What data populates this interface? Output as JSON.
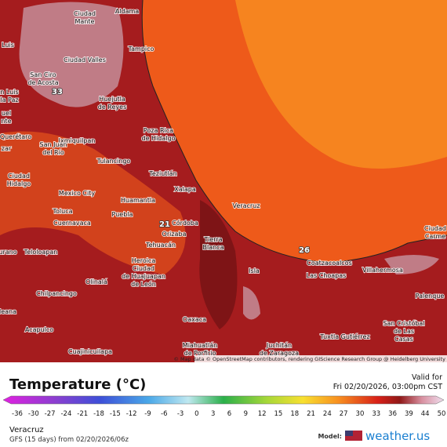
{
  "map": {
    "places": [
      {
        "lines": [
          "Aldama"
        ]
      },
      {
        "lines": [
          "Ciudad",
          "Mante"
        ]
      },
      {
        "lines": [
          "Luis"
        ]
      },
      {
        "lines": [
          "Ciudad Valles"
        ]
      },
      {
        "lines": [
          "Tampico"
        ]
      },
      {
        "lines": [
          "San Ciro",
          "de Acosta"
        ]
      },
      {
        "lines": [
          "Huejutla",
          "de Reyes"
        ]
      },
      {
        "lines": [
          "n Luis",
          "la Paz"
        ]
      },
      {
        "lines": [
          "uel",
          "nte"
        ]
      },
      {
        "lines": [
          "Poza Rica",
          "de Hidalgo"
        ]
      },
      {
        "lines": [
          "Querétaro"
        ]
      },
      {
        "lines": [
          "Ixmiquilpan"
        ]
      },
      {
        "lines": [
          "San Juan",
          "del Río"
        ]
      },
      {
        "lines": [
          "zar"
        ]
      },
      {
        "lines": [
          "Tulancingo"
        ]
      },
      {
        "lines": [
          "Ciudad",
          "Hidalgo"
        ]
      },
      {
        "lines": [
          "Teziutlán"
        ]
      },
      {
        "lines": [
          "Xalapa"
        ]
      },
      {
        "lines": [
          "Mexico City"
        ]
      },
      {
        "lines": [
          "Huamantla"
        ]
      },
      {
        "lines": [
          "Veracruz"
        ]
      },
      {
        "lines": [
          "Toluca"
        ]
      },
      {
        "lines": [
          "Cuernavaca"
        ]
      },
      {
        "lines": [
          "Puebla"
        ]
      },
      {
        "lines": [
          "Córdoba"
        ]
      },
      {
        "lines": [
          "Orizaba"
        ]
      },
      {
        "lines": [
          "Tierra",
          "Blanca"
        ]
      },
      {
        "lines": [
          "Tehuacán"
        ]
      },
      {
        "lines": [
          "Teloloapan"
        ]
      },
      {
        "lines": [
          "urano"
        ]
      },
      {
        "lines": [
          "Ciudad",
          "Carme"
        ]
      },
      {
        "lines": [
          "Coatzacoalcos"
        ]
      },
      {
        "lines": [
          "Heroica",
          "Ciudad",
          "de Huajuapan",
          "de León"
        ]
      },
      {
        "lines": [
          "Isla"
        ]
      },
      {
        "lines": [
          "Las Choapas"
        ]
      },
      {
        "lines": [
          "Villahermosa"
        ]
      },
      {
        "lines": [
          "Olinalá"
        ]
      },
      {
        "lines": [
          "Chilpancingo"
        ]
      },
      {
        "lines": [
          "Palenque"
        ]
      },
      {
        "lines": [
          "Acapulco"
        ]
      },
      {
        "lines": [
          "Oaxaca"
        ]
      },
      {
        "lines": [
          "San Cristóbal",
          "de Las",
          "Casas"
        ]
      },
      {
        "lines": [
          "Tuxtla Gutiérrez"
        ]
      },
      {
        "lines": [
          "Miahuatlán",
          "de Porfirio"
        ]
      },
      {
        "lines": [
          "Juchitán",
          "de Zaragoza"
        ]
      },
      {
        "lines": [
          "Cuajinicuilapa"
        ]
      },
      {
        "lines": [
          "leana"
        ]
      }
    ],
    "contour_labels": [
      33,
      21,
      26
    ],
    "attribution": "© Map data © OpenStreetMap contributors, rendering GIScience Research Group @ Heidelberg University"
  },
  "legend": {
    "title": "Temperature (°C)",
    "valid_label": "Valid for",
    "valid_time": "Fri 02/20/2026, 03:00pm CST",
    "ticks": [
      -36,
      -30,
      -27,
      -24,
      -21,
      -18,
      -15,
      -12,
      -9,
      -6,
      -3,
      0,
      3,
      6,
      9,
      12,
      15,
      18,
      21,
      24,
      27,
      30,
      33,
      36,
      39,
      44,
      50
    ]
  },
  "footer": {
    "location": "Veracruz",
    "model_run": "GFS (15 days) from 02/20/2026/06z",
    "model_label": "Model:",
    "brand": "weather.us"
  }
}
